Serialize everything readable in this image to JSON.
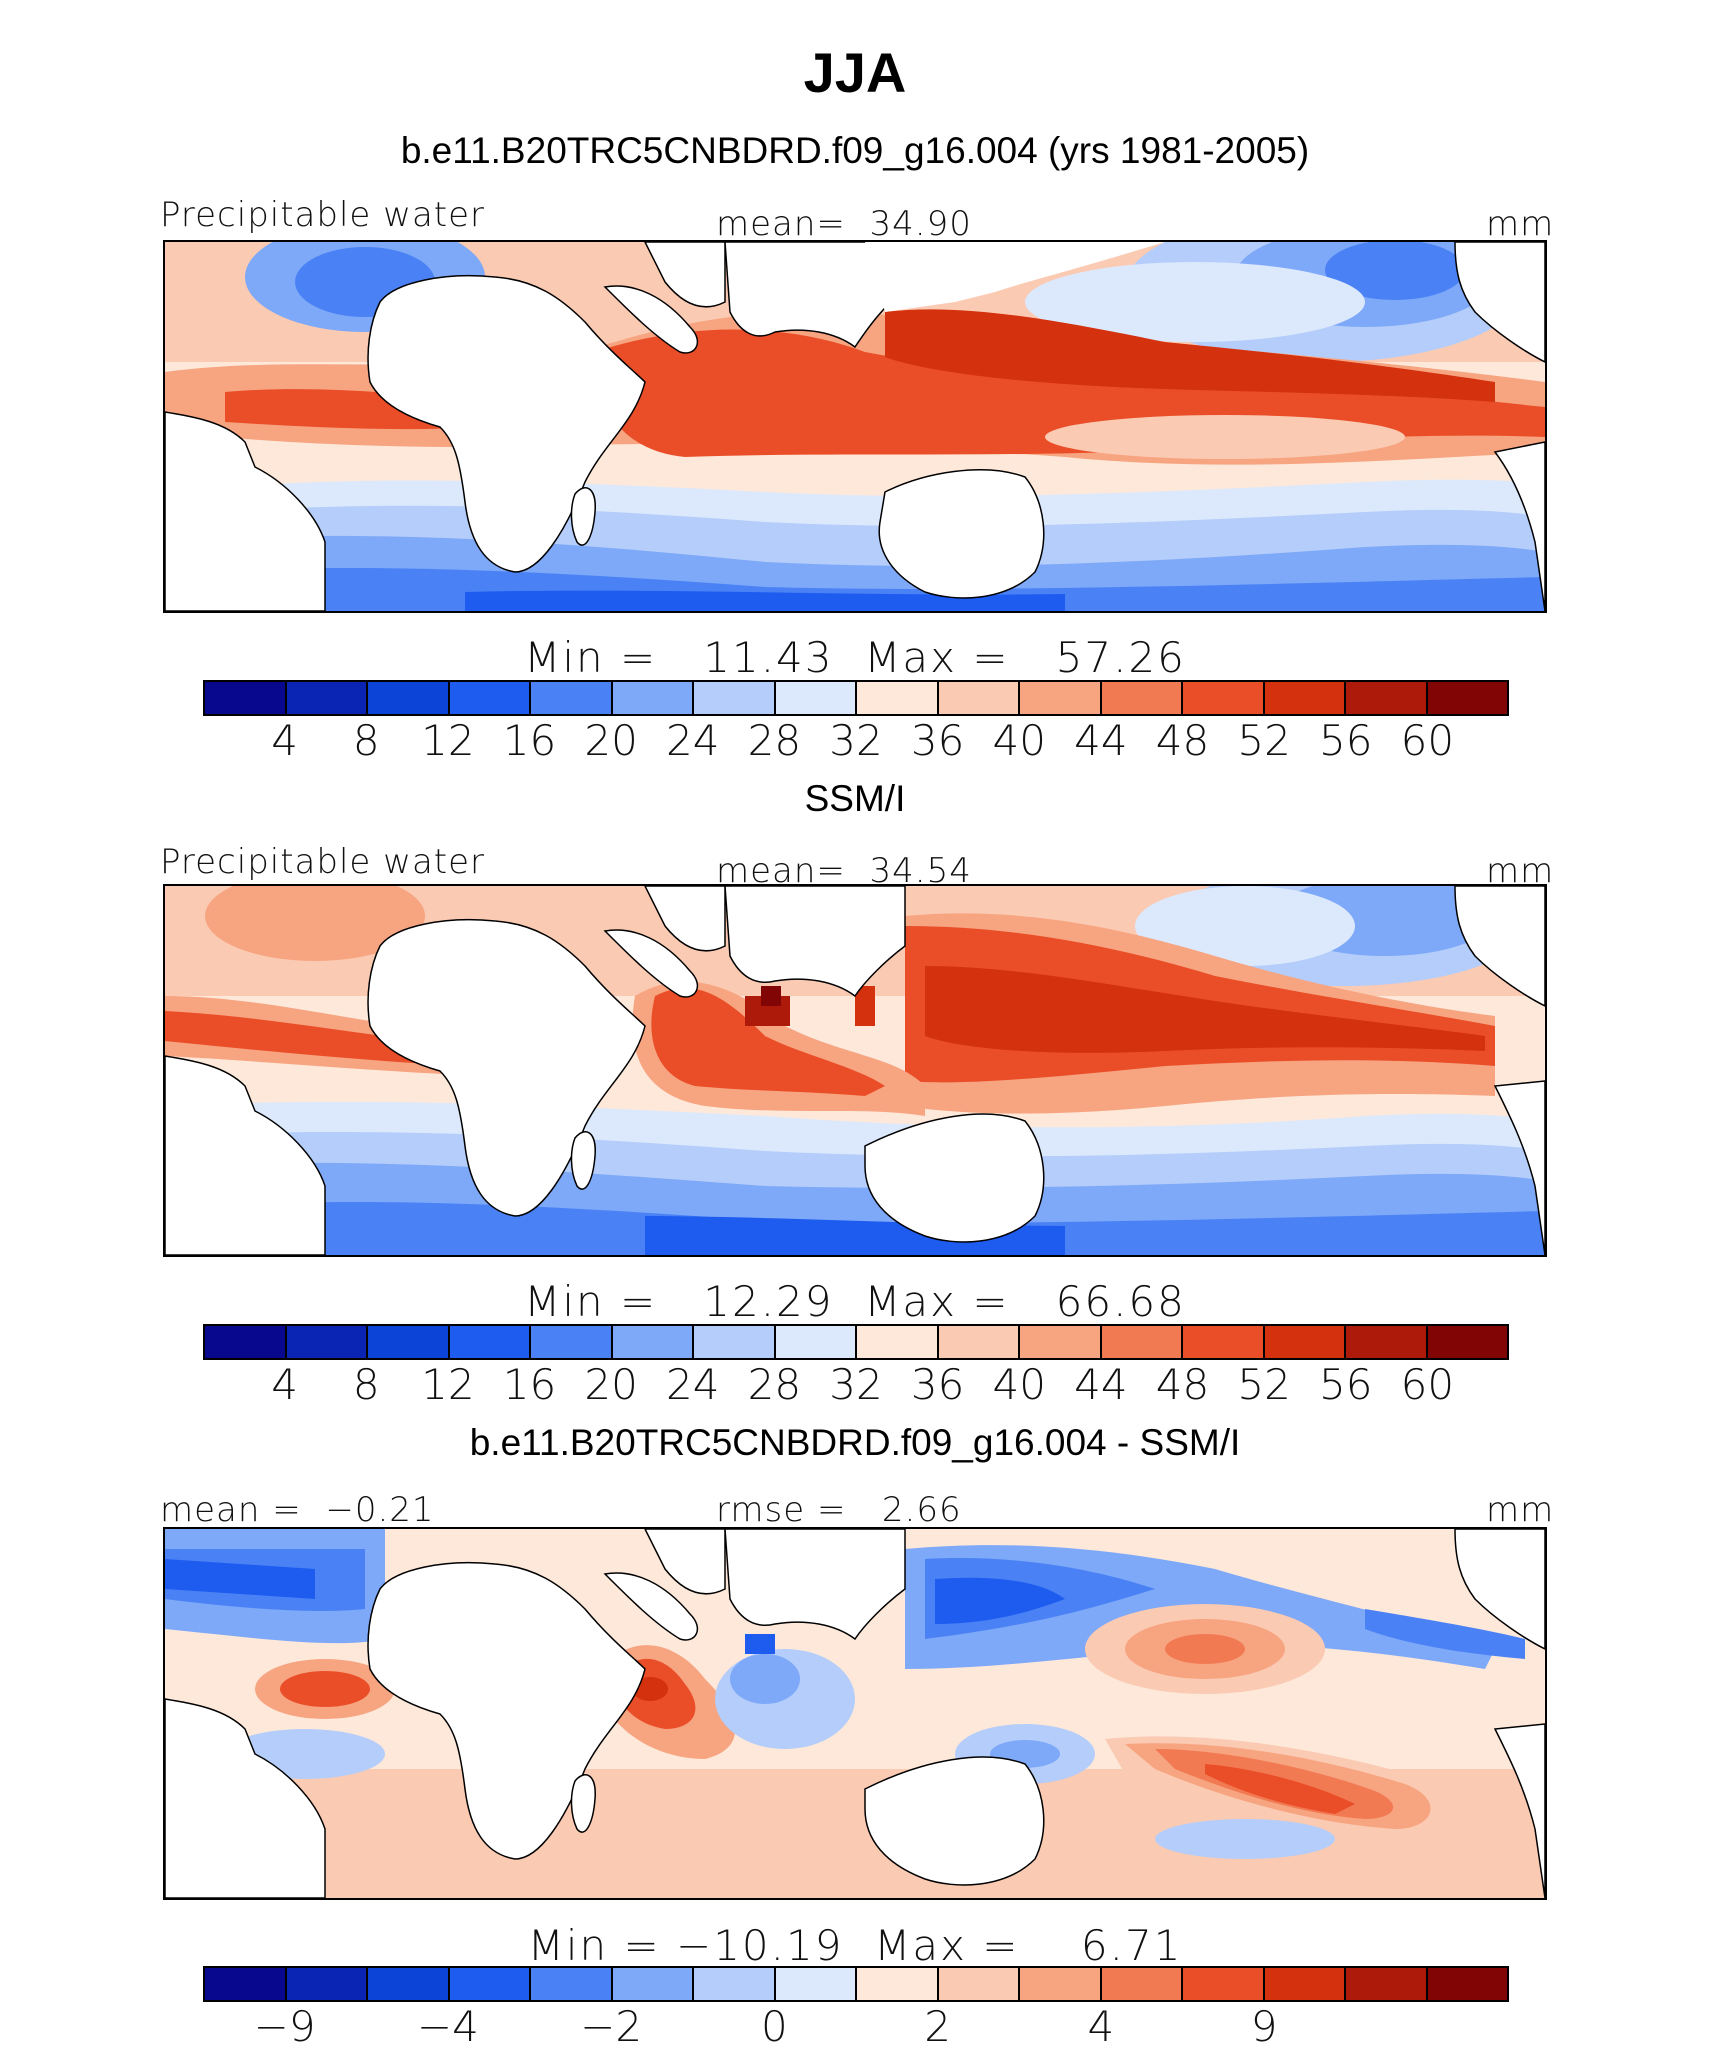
{
  "title": "JJA",
  "units": "mm",
  "colors": [
    "#08088f",
    "#0a24b4",
    "#0c44d8",
    "#1e5cf0",
    "#4a82f5",
    "#7ea8f8",
    "#b4cdfa",
    "#dce9fc",
    "#fde8da",
    "#fbcab3",
    "#f7a481",
    "#f27a53",
    "#ea4e28",
    "#d4310f",
    "#ae1a0a",
    "#820505"
  ],
  "panels": [
    {
      "title": "b.e11.B20TRC5CNBDRD.f09_g16.004 (yrs 1981-2005)",
      "variable": "Precipitable water",
      "stat_label": "mean=",
      "stat_value": "34.90",
      "minmax": "Min =   11.43  Max =   57.26",
      "ticks": [
        "4",
        "8",
        "12",
        "16",
        "20",
        "24",
        "28",
        "32",
        "36",
        "40",
        "44",
        "48",
        "52",
        "56",
        "60"
      ],
      "pattern": "model"
    },
    {
      "title": "SSM/I",
      "variable": "Precipitable water",
      "stat_label": "mean=",
      "stat_value": "34.54",
      "minmax": "Min =   12.29  Max =   66.68",
      "ticks": [
        "4",
        "8",
        "12",
        "16",
        "20",
        "24",
        "28",
        "32",
        "36",
        "40",
        "44",
        "48",
        "52",
        "56",
        "60"
      ],
      "pattern": "obs"
    },
    {
      "title": "b.e11.B20TRC5CNBDRD.f09_g16.004 - SSM/I",
      "variable": "",
      "left_label": "mean =  −0.21",
      "stat_label": "rmse =",
      "stat_value": "2.66",
      "minmax": "Min = −10.19  Max =    6.71",
      "ticks": [
        "−9",
        "",
        "−4",
        "",
        "−2",
        "",
        "0",
        "",
        "2",
        "",
        "4",
        "",
        "9",
        "",
        ""
      ],
      "pattern": "diff"
    }
  ]
}
